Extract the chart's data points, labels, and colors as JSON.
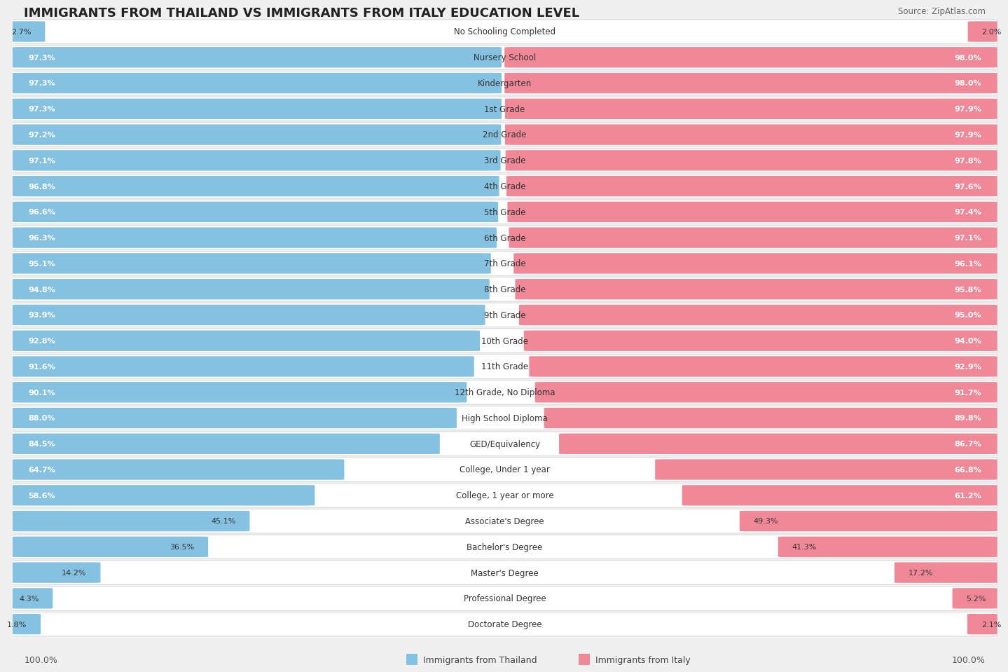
{
  "title": "IMMIGRANTS FROM THAILAND VS IMMIGRANTS FROM ITALY EDUCATION LEVEL",
  "source": "Source: ZipAtlas.com",
  "categories": [
    "No Schooling Completed",
    "Nursery School",
    "Kindergarten",
    "1st Grade",
    "2nd Grade",
    "3rd Grade",
    "4th Grade",
    "5th Grade",
    "6th Grade",
    "7th Grade",
    "8th Grade",
    "9th Grade",
    "10th Grade",
    "11th Grade",
    "12th Grade, No Diploma",
    "High School Diploma",
    "GED/Equivalency",
    "College, Under 1 year",
    "College, 1 year or more",
    "Associate's Degree",
    "Bachelor's Degree",
    "Master's Degree",
    "Professional Degree",
    "Doctorate Degree"
  ],
  "thailand_values": [
    2.7,
    97.3,
    97.3,
    97.3,
    97.2,
    97.1,
    96.8,
    96.6,
    96.3,
    95.1,
    94.8,
    93.9,
    92.8,
    91.6,
    90.1,
    88.0,
    84.5,
    64.7,
    58.6,
    45.1,
    36.5,
    14.2,
    4.3,
    1.8
  ],
  "italy_values": [
    2.0,
    98.0,
    98.0,
    97.9,
    97.9,
    97.8,
    97.6,
    97.4,
    97.1,
    96.1,
    95.8,
    95.0,
    94.0,
    92.9,
    91.7,
    89.8,
    86.7,
    66.8,
    61.2,
    49.3,
    41.3,
    17.2,
    5.2,
    2.1
  ],
  "thailand_color": "#85C1E0",
  "italy_color": "#F08898",
  "background_color": "#f0f0f0",
  "row_bg_color": "#ffffff",
  "legend_thailand": "Immigrants from Thailand",
  "legend_italy": "Immigrants from Italy",
  "title_fontsize": 13,
  "label_fontsize": 8.5,
  "value_fontsize": 8.0
}
